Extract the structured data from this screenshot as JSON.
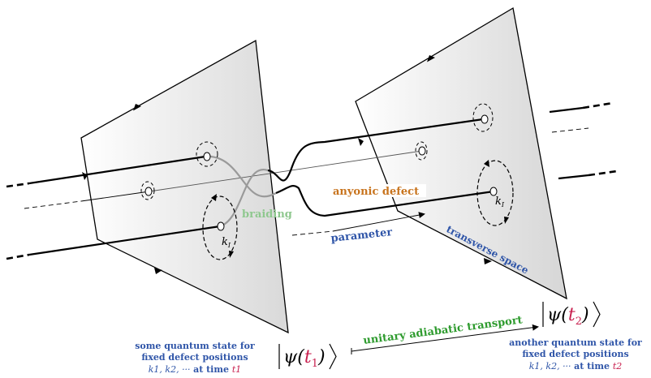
{
  "labels": {
    "braiding": "braiding",
    "anyonic_defect": "anyonic defect",
    "parameter": "parameter",
    "transverse_space": "transverse space",
    "unitary_transport": "unitary adiabatic transport",
    "k_left": "k",
    "k_left_sub": "I",
    "k_right": "k",
    "k_right_sub": "I",
    "left_caption": {
      "line1": "some quantum state for",
      "line2": "fixed defect positions",
      "line3_vars": "k1, k2, ··· ",
      "line3_text": "at time ",
      "line3_time": "t1"
    },
    "right_caption": {
      "line1": "another quantum state for",
      "line2": "fixed defect positions",
      "line3_vars": "k1, k2, ··· ",
      "line3_text": "at time ",
      "line3_time": "t2"
    },
    "ket_left": {
      "psi": "ψ(",
      "t": "t",
      "sub": "1",
      "close": ")"
    },
    "ket_right": {
      "psi": "ψ(",
      "t": "t",
      "sub": "2",
      "close": ")"
    }
  },
  "colors": {
    "braiding": "#8fc88f",
    "anyonic_defect": "#c8741e",
    "parameter": "#2f55a8",
    "transverse_space": "#2f55a8",
    "caption": "#2f55a8",
    "transport": "#2e9b2e",
    "time": "#c8204f"
  }
}
